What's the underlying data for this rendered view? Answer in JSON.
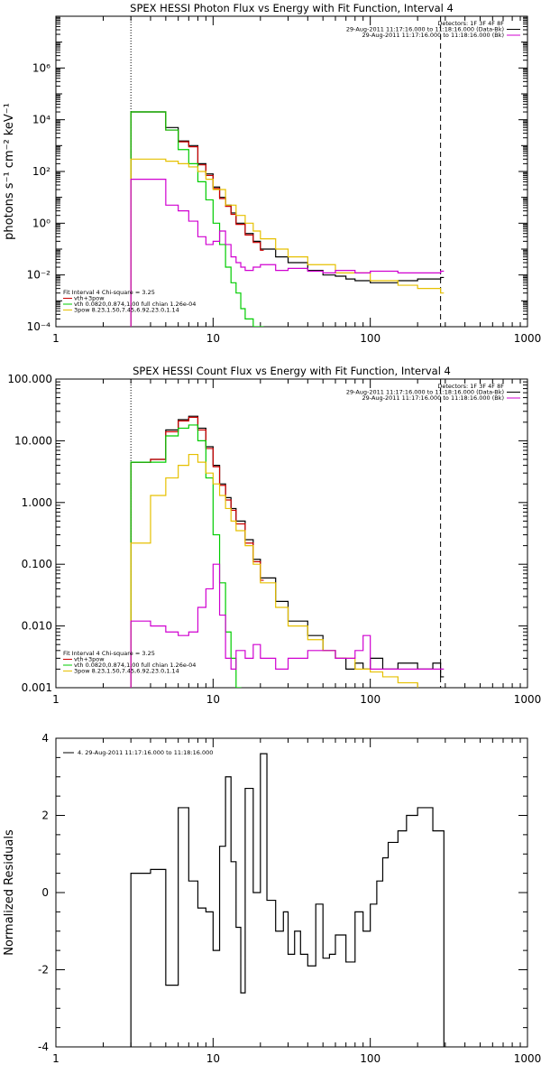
{
  "chart_data": [
    {
      "type": "line",
      "title": "SPEX HESSI Photon Flux vs Energy with Fit Function, Interval 4",
      "xlabel": "",
      "ylabel": "photons s⁻¹ cm⁻² keV⁻¹",
      "xscale": "log",
      "yscale": "log",
      "xlim": [
        1,
        1000
      ],
      "ylim": [
        0.0001,
        100000000
      ],
      "x_ticks": [
        "1",
        "10",
        "100",
        "1000"
      ],
      "y_ticks": [
        "10⁻⁴",
        "10⁻²",
        "10⁰",
        "10²",
        "10⁴",
        "10⁶"
      ],
      "legend_top": [
        "Detectors: 1F 3F 4F 8F",
        "29-Aug-2011 11:17:16.000 to 11:18:16.000 (Data-Bk)",
        "29-Aug-2011 11:17:16.000 to 11:18:16.000 (Bk)"
      ],
      "legend_bottom": [
        "Fit Interval  4   Chi-square = 3.25",
        "vth+3pow",
        "vth 0.0820,0.874,1.00  full chian 1.26e-04",
        "3pow 8.23,1.50,7.45,6.92,23.0,1.14"
      ],
      "vlines": [
        3,
        280
      ],
      "series": [
        {
          "name": "data-bk",
          "color": "#000000",
          "x": [
            3,
            4,
            5,
            6,
            7,
            8,
            9,
            10,
            11,
            12,
            13,
            14,
            16,
            18,
            20,
            25,
            30,
            40,
            50,
            60,
            70,
            80,
            90,
            100,
            120,
            150,
            200,
            280
          ],
          "y": [
            20000,
            20000,
            5000,
            1500,
            1000,
            200,
            80,
            25,
            10,
            5,
            2.5,
            1,
            0.4,
            0.2,
            0.1,
            0.05,
            0.03,
            0.015,
            0.01,
            0.009,
            0.007,
            0.006,
            0.006,
            0.005,
            0.005,
            0.006,
            0.007,
            0.008
          ]
        },
        {
          "name": "vth+3pow",
          "color": "#cc0000",
          "x": [
            3,
            4,
            5,
            6,
            7,
            8,
            9,
            10,
            11,
            12,
            13,
            14,
            16,
            18,
            20
          ],
          "y": [
            20000,
            20000,
            4000,
            1400,
            900,
            180,
            70,
            22,
            9,
            4.5,
            2.2,
            0.9,
            0.35,
            0.18,
            0.09
          ]
        },
        {
          "name": "vth",
          "color": "#00cc00",
          "x": [
            3,
            4,
            5,
            6,
            7,
            8,
            9,
            10,
            11,
            12,
            13,
            14,
            15,
            16,
            18,
            20
          ],
          "y": [
            20000,
            20000,
            4000,
            700,
            200,
            40,
            8,
            1,
            0.15,
            0.02,
            0.005,
            0.002,
            0.0005,
            0.0002,
            0.0001,
            0.0001
          ]
        },
        {
          "name": "3pow",
          "color": "#e6c000",
          "x": [
            3,
            4,
            5,
            6,
            7,
            8,
            9,
            10,
            12,
            14,
            16,
            18,
            20,
            25,
            30,
            40,
            60,
            100,
            150,
            200,
            280
          ],
          "y": [
            300,
            300,
            250,
            200,
            150,
            100,
            50,
            20,
            5,
            2,
            1,
            0.5,
            0.25,
            0.1,
            0.05,
            0.025,
            0.012,
            0.006,
            0.004,
            0.003,
            0.002
          ]
        },
        {
          "name": "bk",
          "color": "#d000d0",
          "x": [
            3,
            4,
            5,
            6,
            7,
            8,
            9,
            10,
            11,
            12,
            13,
            14,
            15,
            16,
            18,
            20,
            25,
            30,
            40,
            50,
            60,
            80,
            100,
            150,
            200,
            280
          ],
          "y": [
            50,
            50,
            5,
            3,
            1.2,
            0.3,
            0.15,
            0.2,
            0.5,
            0.15,
            0.05,
            0.03,
            0.02,
            0.015,
            0.02,
            0.025,
            0.015,
            0.018,
            0.014,
            0.012,
            0.015,
            0.012,
            0.014,
            0.012,
            0.012,
            0.014
          ]
        }
      ]
    },
    {
      "type": "line",
      "title": "SPEX HESSI Count Flux vs Energy with Fit Function, Interval 4",
      "xlabel": "",
      "ylabel": "",
      "xscale": "log",
      "yscale": "log",
      "xlim": [
        1,
        1000
      ],
      "ylim": [
        0.001,
        100
      ],
      "x_ticks": [
        "1",
        "10",
        "100",
        "1000"
      ],
      "y_ticks": [
        "0.001",
        "0.010",
        "0.100",
        "1.000",
        "10.000",
        "100.000"
      ],
      "legend_top": [
        "Detectors: 1F 3F 4F 8F",
        "29-Aug-2011 11:17:16.000 to 11:18:16.000 (Data-Bk)",
        "29-Aug-2011 11:17:16.000 to 11:18:16.000 (Bk)"
      ],
      "legend_bottom": [
        "Fit Interval  4   Chi-square = 3.25",
        "vth+3pow",
        "vth 0.0820,0.874,1.00  full chian 1.26e-04",
        "3pow 8.23,1.50,7.45,6.92,23.0,1.14"
      ],
      "vlines": [
        3,
        280
      ],
      "series": [
        {
          "name": "data-bk",
          "color": "#000000",
          "x": [
            3,
            4,
            5,
            6,
            7,
            8,
            9,
            10,
            11,
            12,
            13,
            14,
            16,
            18,
            20,
            25,
            30,
            40,
            50,
            60,
            70,
            80,
            90,
            100,
            120,
            150,
            200,
            250,
            280
          ],
          "y": [
            4.5,
            5,
            15,
            22,
            25,
            16,
            8,
            4,
            2,
            1.2,
            0.8,
            0.5,
            0.25,
            0.12,
            0.06,
            0.025,
            0.012,
            0.007,
            0.004,
            0.003,
            0.002,
            0.0025,
            0.002,
            0.003,
            0.002,
            0.0025,
            0.002,
            0.0025,
            0.0015
          ]
        },
        {
          "name": "vth+3pow",
          "color": "#cc0000",
          "x": [
            3,
            4,
            5,
            6,
            7,
            8,
            9,
            10,
            11,
            12,
            13,
            14,
            16,
            18,
            20
          ],
          "y": [
            4.5,
            5,
            14,
            21,
            24,
            15,
            7.5,
            3.8,
            1.9,
            1.1,
            0.75,
            0.45,
            0.22,
            0.11,
            0.055
          ]
        },
        {
          "name": "vth",
          "color": "#00cc00",
          "x": [
            3,
            4,
            5,
            6,
            7,
            8,
            9,
            10,
            11,
            12,
            13,
            14,
            15
          ],
          "y": [
            4.5,
            4.5,
            12,
            16,
            18,
            10,
            2.5,
            0.3,
            0.05,
            0.008,
            0.003,
            0.001,
            0.0005
          ]
        },
        {
          "name": "3pow",
          "color": "#e6c000",
          "x": [
            3,
            4,
            5,
            6,
            7,
            8,
            9,
            10,
            11,
            12,
            13,
            14,
            16,
            18,
            20,
            25,
            30,
            40,
            50,
            60,
            80,
            100,
            120,
            150,
            200
          ],
          "y": [
            0.22,
            1.3,
            2.5,
            4,
            6,
            4.5,
            3,
            2,
            1.3,
            0.8,
            0.5,
            0.35,
            0.2,
            0.1,
            0.05,
            0.02,
            0.01,
            0.006,
            0.004,
            0.003,
            0.002,
            0.0018,
            0.0015,
            0.0012,
            0.0008
          ]
        },
        {
          "name": "bk",
          "color": "#d000d0",
          "x": [
            3,
            4,
            5,
            6,
            7,
            8,
            9,
            10,
            11,
            12,
            13,
            14,
            16,
            18,
            20,
            25,
            30,
            40,
            50,
            60,
            80,
            90,
            100,
            120,
            150,
            200,
            280
          ],
          "y": [
            0.012,
            0.01,
            0.008,
            0.007,
            0.008,
            0.02,
            0.04,
            0.1,
            0.015,
            0.003,
            0.002,
            0.004,
            0.003,
            0.005,
            0.003,
            0.002,
            0.003,
            0.004,
            0.004,
            0.003,
            0.004,
            0.007,
            0.002,
            0.002,
            0.002,
            0.002,
            0.002
          ]
        }
      ]
    },
    {
      "type": "line",
      "title": "",
      "xlabel": "",
      "ylabel": "Normalized Residuals",
      "xscale": "log",
      "yscale": "linear",
      "xlim": [
        1,
        1000
      ],
      "ylim": [
        -4,
        4
      ],
      "x_ticks": [
        "1",
        "10",
        "100",
        "1000"
      ],
      "y_ticks": [
        "-4",
        "-2",
        "0",
        "2",
        "4"
      ],
      "legend": [
        "4. 29-Aug-2011 11:17:16.000 to 11:18:16.000"
      ],
      "series": [
        {
          "name": "4. 29-Aug-2011 11:17:16.000 to 11:18:16.000",
          "color": "#000000",
          "x": [
            3,
            4,
            5,
            6,
            7,
            8,
            9,
            10,
            11,
            12,
            13,
            14,
            15,
            16,
            18,
            20,
            22,
            25,
            28,
            30,
            33,
            36,
            40,
            45,
            50,
            55,
            60,
            70,
            80,
            90,
            100,
            110,
            120,
            130,
            150,
            170,
            200,
            250,
            280
          ],
          "y": [
            0.5,
            0.6,
            -2.4,
            2.2,
            0.3,
            -0.4,
            -0.5,
            -1.5,
            1.2,
            3.0,
            0.8,
            -0.9,
            -2.6,
            2.7,
            0.0,
            3.6,
            -0.2,
            -1.0,
            -0.5,
            -1.6,
            -1.0,
            -1.6,
            -1.9,
            -0.3,
            -1.7,
            -1.6,
            -1.1,
            -1.8,
            -0.5,
            -1.0,
            -0.3,
            0.3,
            0.9,
            1.3,
            1.6,
            2.0,
            2.2,
            1.6,
            1.6
          ]
        }
      ]
    }
  ]
}
